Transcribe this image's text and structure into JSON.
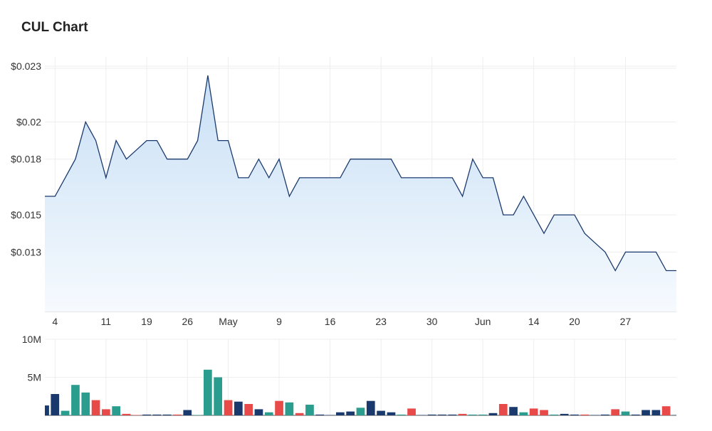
{
  "chart_data": {
    "type": "line",
    "title": "CUL Chart",
    "price_y_ticks": [
      {
        "value": 0.023,
        "label": "$0.023"
      },
      {
        "value": 0.02,
        "label": "$0.02"
      },
      {
        "value": 0.018,
        "label": "$0.018"
      },
      {
        "value": 0.015,
        "label": "$0.015"
      },
      {
        "value": 0.013,
        "label": "$0.013"
      }
    ],
    "price_ylim": [
      0.0098,
      0.0235
    ],
    "x_ticks": [
      {
        "i": 1,
        "label": "4"
      },
      {
        "i": 6,
        "label": "11"
      },
      {
        "i": 10,
        "label": "19"
      },
      {
        "i": 14,
        "label": "26"
      },
      {
        "i": 18,
        "label": "May"
      },
      {
        "i": 23,
        "label": "9"
      },
      {
        "i": 28,
        "label": "16"
      },
      {
        "i": 33,
        "label": "23"
      },
      {
        "i": 38,
        "label": "30"
      },
      {
        "i": 43,
        "label": "Jun"
      },
      {
        "i": 48,
        "label": "14"
      },
      {
        "i": 52,
        "label": "20"
      },
      {
        "i": 57,
        "label": "27"
      }
    ],
    "price": [
      0.016,
      0.016,
      0.017,
      0.018,
      0.02,
      0.019,
      0.017,
      0.019,
      0.018,
      0.0185,
      0.019,
      0.019,
      0.018,
      0.018,
      0.018,
      0.019,
      0.0225,
      0.019,
      0.019,
      0.017,
      0.017,
      0.018,
      0.017,
      0.018,
      0.016,
      0.017,
      0.017,
      0.017,
      0.017,
      0.017,
      0.018,
      0.018,
      0.018,
      0.018,
      0.018,
      0.017,
      0.017,
      0.017,
      0.017,
      0.017,
      0.017,
      0.016,
      0.018,
      0.017,
      0.017,
      0.015,
      0.015,
      0.016,
      0.015,
      0.014,
      0.015,
      0.015,
      0.015,
      0.014,
      0.0135,
      0.013,
      0.012,
      0.013,
      0.013,
      0.013,
      0.013,
      0.012,
      0.012
    ],
    "volume_y_ticks": [
      {
        "value": 10000000,
        "label": "10M"
      },
      {
        "value": 5000000,
        "label": "5M"
      }
    ],
    "volume_ylim": [
      0,
      10000000
    ],
    "volume": [
      {
        "v": 1300000,
        "c": "blue"
      },
      {
        "v": 2800000,
        "c": "blue"
      },
      {
        "v": 600000,
        "c": "teal"
      },
      {
        "v": 4000000,
        "c": "teal"
      },
      {
        "v": 3000000,
        "c": "teal"
      },
      {
        "v": 2000000,
        "c": "red"
      },
      {
        "v": 800000,
        "c": "red"
      },
      {
        "v": 1200000,
        "c": "teal"
      },
      {
        "v": 200000,
        "c": "red"
      },
      {
        "v": 50000,
        "c": "red"
      },
      {
        "v": 100000,
        "c": "blue"
      },
      {
        "v": 100000,
        "c": "blue"
      },
      {
        "v": 100000,
        "c": "blue"
      },
      {
        "v": 100000,
        "c": "red"
      },
      {
        "v": 700000,
        "c": "blue"
      },
      {
        "v": 50000,
        "c": "teal"
      },
      {
        "v": 6000000,
        "c": "teal"
      },
      {
        "v": 5000000,
        "c": "teal"
      },
      {
        "v": 2000000,
        "c": "red"
      },
      {
        "v": 1800000,
        "c": "blue"
      },
      {
        "v": 1500000,
        "c": "red"
      },
      {
        "v": 800000,
        "c": "blue"
      },
      {
        "v": 400000,
        "c": "teal"
      },
      {
        "v": 1900000,
        "c": "red"
      },
      {
        "v": 1700000,
        "c": "teal"
      },
      {
        "v": 300000,
        "c": "red"
      },
      {
        "v": 1400000,
        "c": "teal"
      },
      {
        "v": 100000,
        "c": "blue"
      },
      {
        "v": 50000,
        "c": "blue"
      },
      {
        "v": 400000,
        "c": "blue"
      },
      {
        "v": 500000,
        "c": "blue"
      },
      {
        "v": 1000000,
        "c": "teal"
      },
      {
        "v": 1900000,
        "c": "blue"
      },
      {
        "v": 600000,
        "c": "blue"
      },
      {
        "v": 400000,
        "c": "blue"
      },
      {
        "v": 100000,
        "c": "teal"
      },
      {
        "v": 900000,
        "c": "red"
      },
      {
        "v": 50000,
        "c": "blue"
      },
      {
        "v": 100000,
        "c": "blue"
      },
      {
        "v": 100000,
        "c": "blue"
      },
      {
        "v": 100000,
        "c": "blue"
      },
      {
        "v": 200000,
        "c": "red"
      },
      {
        "v": 100000,
        "c": "teal"
      },
      {
        "v": 100000,
        "c": "teal"
      },
      {
        "v": 300000,
        "c": "blue"
      },
      {
        "v": 1500000,
        "c": "red"
      },
      {
        "v": 1100000,
        "c": "blue"
      },
      {
        "v": 400000,
        "c": "teal"
      },
      {
        "v": 900000,
        "c": "red"
      },
      {
        "v": 700000,
        "c": "red"
      },
      {
        "v": 100000,
        "c": "teal"
      },
      {
        "v": 200000,
        "c": "blue"
      },
      {
        "v": 100000,
        "c": "blue"
      },
      {
        "v": 100000,
        "c": "red"
      },
      {
        "v": 50000,
        "c": "blue"
      },
      {
        "v": 100000,
        "c": "blue"
      },
      {
        "v": 800000,
        "c": "red"
      },
      {
        "v": 500000,
        "c": "teal"
      },
      {
        "v": 100000,
        "c": "blue"
      },
      {
        "v": 700000,
        "c": "blue"
      },
      {
        "v": 700000,
        "c": "blue"
      },
      {
        "v": 1200000,
        "c": "red"
      },
      {
        "v": 50000,
        "c": "blue"
      }
    ],
    "colors": {
      "line": "#1a3a6e",
      "area_top": "#c8dff5",
      "area_bottom": "#f6fafe",
      "grid": "#eeeeee",
      "blue": "#1a3a6e",
      "teal": "#2a9d8f",
      "red": "#e84a4a"
    },
    "grid": true
  }
}
